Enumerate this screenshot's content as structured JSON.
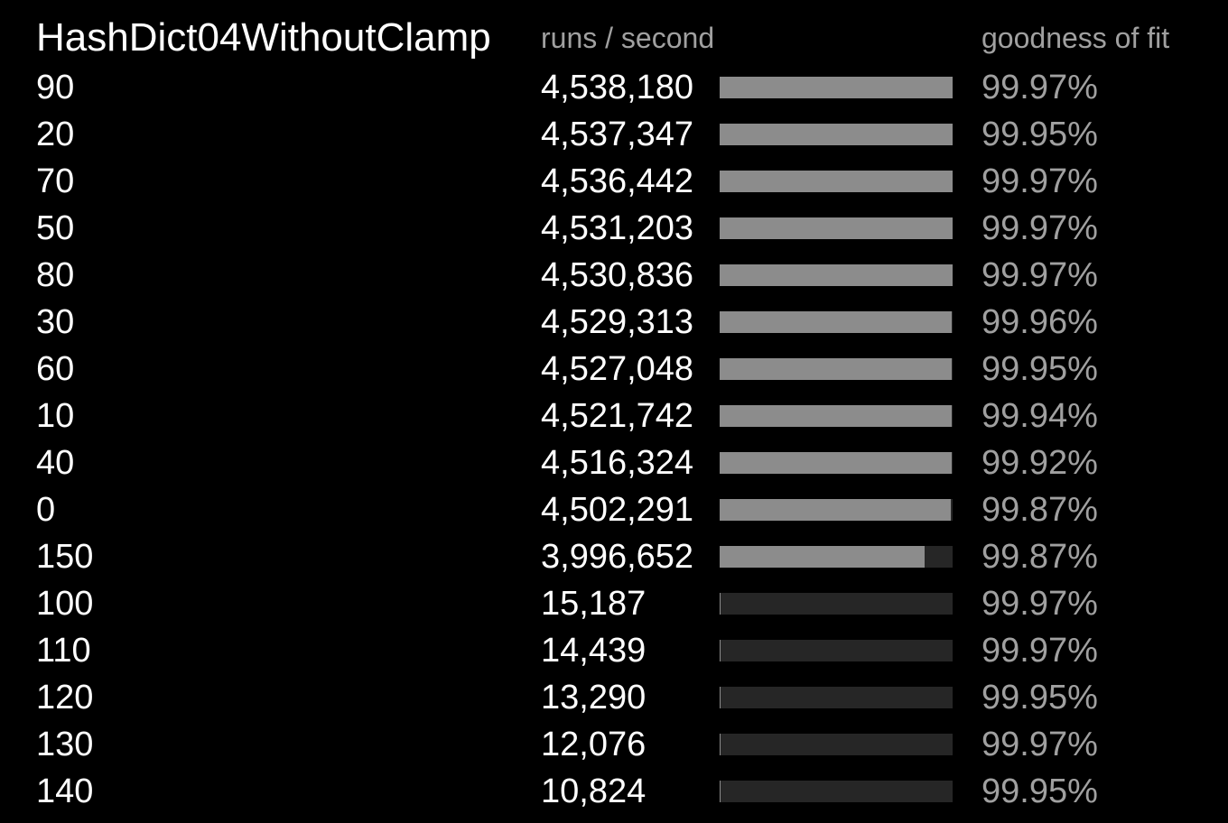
{
  "chart_data": {
    "type": "bar",
    "title": "HashDict04WithoutClamp",
    "value_header": "runs / second",
    "fit_header": "goodness of fit",
    "orientation": "horizontal",
    "max_value": 4538180,
    "colors": {
      "background": "#000000",
      "bar_fill": "#8c8c8c",
      "bar_track": "#262626",
      "text": "#ffffff",
      "muted_text": "#a0a0a0"
    },
    "rows": [
      {
        "label": "90",
        "value": 4538180,
        "value_text": "4,538,180",
        "fit": "99.97%"
      },
      {
        "label": "20",
        "value": 4537347,
        "value_text": "4,537,347",
        "fit": "99.95%"
      },
      {
        "label": "70",
        "value": 4536442,
        "value_text": "4,536,442",
        "fit": "99.97%"
      },
      {
        "label": "50",
        "value": 4531203,
        "value_text": "4,531,203",
        "fit": "99.97%"
      },
      {
        "label": "80",
        "value": 4530836,
        "value_text": "4,530,836",
        "fit": "99.97%"
      },
      {
        "label": "30",
        "value": 4529313,
        "value_text": "4,529,313",
        "fit": "99.96%"
      },
      {
        "label": "60",
        "value": 4527048,
        "value_text": "4,527,048",
        "fit": "99.95%"
      },
      {
        "label": "10",
        "value": 4521742,
        "value_text": "4,521,742",
        "fit": "99.94%"
      },
      {
        "label": "40",
        "value": 4516324,
        "value_text": "4,516,324",
        "fit": "99.92%"
      },
      {
        "label": "0",
        "value": 4502291,
        "value_text": "4,502,291",
        "fit": "99.87%"
      },
      {
        "label": "150",
        "value": 3996652,
        "value_text": "3,996,652",
        "fit": "99.87%"
      },
      {
        "label": "100",
        "value": 15187,
        "value_text": "15,187",
        "fit": "99.97%"
      },
      {
        "label": "110",
        "value": 14439,
        "value_text": "14,439",
        "fit": "99.97%"
      },
      {
        "label": "120",
        "value": 13290,
        "value_text": "13,290",
        "fit": "99.95%"
      },
      {
        "label": "130",
        "value": 12076,
        "value_text": "12,076",
        "fit": "99.97%"
      },
      {
        "label": "140",
        "value": 10824,
        "value_text": "10,824",
        "fit": "99.95%"
      }
    ]
  }
}
